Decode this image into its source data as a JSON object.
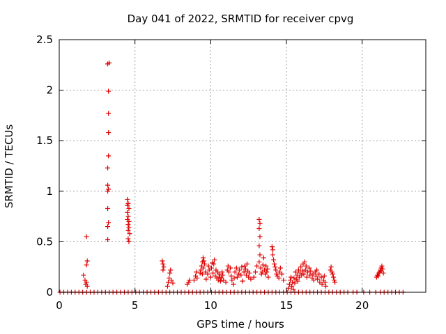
{
  "chart_data": {
    "type": "scatter",
    "title": "Day 041 of 2022, SRMTID for receiver cpvg",
    "xlabel": "GPS time / hours",
    "ylabel": "SRMTID / TECUs",
    "xlim": [
      0,
      24.2
    ],
    "ylim": [
      0,
      2.5
    ],
    "xticks": [
      0,
      5,
      10,
      15,
      20
    ],
    "xtick_labels": [
      "0",
      "5",
      "10",
      "15",
      "20"
    ],
    "yticks": [
      0,
      0.5,
      1,
      1.5,
      2,
      2.5
    ],
    "ytick_labels": [
      "0",
      "0.5",
      "1",
      "1.5",
      "2",
      "2.5"
    ],
    "grid": true,
    "marker": "+",
    "color": "#e00000",
    "series": [
      {
        "name": "SRMTID",
        "points": [
          [
            0.05,
            0
          ],
          [
            0.3,
            0
          ],
          [
            0.55,
            0
          ],
          [
            0.8,
            0
          ],
          [
            1.05,
            0
          ],
          [
            1.3,
            0
          ],
          [
            1.55,
            0
          ],
          [
            1.8,
            0
          ],
          [
            2.05,
            0
          ],
          [
            2.3,
            0
          ],
          [
            2.55,
            0
          ],
          [
            2.8,
            0
          ],
          [
            3.05,
            0
          ],
          [
            3.3,
            0
          ],
          [
            3.55,
            0
          ],
          [
            3.8,
            0
          ],
          [
            4.05,
            0
          ],
          [
            4.3,
            0
          ],
          [
            4.55,
            0
          ],
          [
            4.8,
            0
          ],
          [
            5.05,
            0
          ],
          [
            5.3,
            0
          ],
          [
            5.55,
            0
          ],
          [
            5.8,
            0
          ],
          [
            6.05,
            0
          ],
          [
            6.3,
            0
          ],
          [
            6.55,
            0
          ],
          [
            6.8,
            0
          ],
          [
            7.05,
            0
          ],
          [
            7.3,
            0
          ],
          [
            7.55,
            0
          ],
          [
            7.8,
            0
          ],
          [
            8.05,
            0
          ],
          [
            8.3,
            0
          ],
          [
            8.55,
            0
          ],
          [
            8.8,
            0
          ],
          [
            9.05,
            0
          ],
          [
            9.3,
            0
          ],
          [
            9.55,
            0
          ],
          [
            9.8,
            0
          ],
          [
            10.05,
            0
          ],
          [
            10.3,
            0
          ],
          [
            10.55,
            0
          ],
          [
            10.8,
            0
          ],
          [
            11.05,
            0
          ],
          [
            11.3,
            0
          ],
          [
            11.55,
            0
          ],
          [
            11.8,
            0
          ],
          [
            12.05,
            0
          ],
          [
            12.3,
            0
          ],
          [
            12.55,
            0
          ],
          [
            12.8,
            0
          ],
          [
            13.05,
            0
          ],
          [
            13.3,
            0
          ],
          [
            13.55,
            0
          ],
          [
            13.8,
            0
          ],
          [
            14.05,
            0
          ],
          [
            14.3,
            0
          ],
          [
            14.55,
            0
          ],
          [
            14.8,
            0
          ],
          [
            15.05,
            0
          ],
          [
            15.3,
            0
          ],
          [
            15.55,
            0
          ],
          [
            15.8,
            0
          ],
          [
            16.05,
            0
          ],
          [
            16.3,
            0
          ],
          [
            16.55,
            0
          ],
          [
            16.8,
            0
          ],
          [
            17.05,
            0
          ],
          [
            17.3,
            0
          ],
          [
            17.55,
            0
          ],
          [
            17.8,
            0
          ],
          [
            18.05,
            0
          ],
          [
            18.3,
            0
          ],
          [
            18.55,
            0
          ],
          [
            18.8,
            0
          ],
          [
            19.05,
            0
          ],
          [
            19.4,
            0
          ],
          [
            19.65,
            0
          ],
          [
            20.1,
            0
          ],
          [
            20.5,
            0
          ],
          [
            20.9,
            0
          ],
          [
            21.2,
            0
          ],
          [
            21.45,
            0
          ],
          [
            21.7,
            0
          ],
          [
            21.95,
            0
          ],
          [
            22.2,
            0
          ],
          [
            22.45,
            0
          ],
          [
            22.7,
            0
          ],
          [
            1.6,
            0.17
          ],
          [
            1.7,
            0.12
          ],
          [
            1.75,
            0.08
          ],
          [
            1.8,
            0.1
          ],
          [
            1.85,
            0.06
          ],
          [
            1.8,
            0.27
          ],
          [
            1.85,
            0.31
          ],
          [
            1.8,
            0.55
          ],
          [
            3.2,
            2.26
          ],
          [
            3.3,
            2.27
          ],
          [
            3.25,
            1.99
          ],
          [
            3.25,
            1.77
          ],
          [
            3.25,
            1.58
          ],
          [
            3.25,
            1.35
          ],
          [
            3.2,
            1.23
          ],
          [
            3.2,
            1.06
          ],
          [
            3.25,
            1.02
          ],
          [
            3.2,
            1.0
          ],
          [
            3.2,
            0.83
          ],
          [
            3.25,
            0.69
          ],
          [
            3.2,
            0.65
          ],
          [
            3.2,
            0.52
          ],
          [
            4.5,
            0.92
          ],
          [
            4.55,
            0.88
          ],
          [
            4.5,
            0.86
          ],
          [
            4.6,
            0.83
          ],
          [
            4.5,
            0.79
          ],
          [
            4.55,
            0.75
          ],
          [
            4.5,
            0.72
          ],
          [
            4.6,
            0.7
          ],
          [
            4.55,
            0.67
          ],
          [
            4.6,
            0.64
          ],
          [
            4.55,
            0.61
          ],
          [
            4.65,
            0.58
          ],
          [
            4.55,
            0.53
          ],
          [
            4.6,
            0.5
          ],
          [
            6.8,
            0.31
          ],
          [
            6.85,
            0.28
          ],
          [
            6.9,
            0.25
          ],
          [
            6.85,
            0.22
          ],
          [
            7.15,
            0.06
          ],
          [
            7.2,
            0.1
          ],
          [
            7.3,
            0.19
          ],
          [
            7.35,
            0.22
          ],
          [
            7.25,
            0.14
          ],
          [
            7.4,
            0.12
          ],
          [
            7.5,
            0.09
          ],
          [
            8.45,
            0.08
          ],
          [
            8.55,
            0.1
          ],
          [
            8.6,
            0.12
          ],
          [
            8.9,
            0.12
          ],
          [
            9.0,
            0.16
          ],
          [
            9.05,
            0.2
          ],
          [
            9.1,
            0.14
          ],
          [
            9.3,
            0.19
          ],
          [
            9.35,
            0.22
          ],
          [
            9.4,
            0.26
          ],
          [
            9.45,
            0.3
          ],
          [
            9.5,
            0.34
          ],
          [
            9.55,
            0.31
          ],
          [
            9.6,
            0.28
          ],
          [
            9.5,
            0.24
          ],
          [
            9.45,
            0.18
          ],
          [
            9.65,
            0.2
          ],
          [
            9.7,
            0.13
          ],
          [
            9.8,
            0.18
          ],
          [
            9.85,
            0.26
          ],
          [
            9.9,
            0.22
          ],
          [
            10.0,
            0.15
          ],
          [
            10.05,
            0.24
          ],
          [
            10.1,
            0.29
          ],
          [
            10.15,
            0.19
          ],
          [
            10.2,
            0.28
          ],
          [
            10.25,
            0.32
          ],
          [
            10.3,
            0.16
          ],
          [
            10.35,
            0.22
          ],
          [
            10.4,
            0.14
          ],
          [
            10.45,
            0.2
          ],
          [
            10.5,
            0.12
          ],
          [
            10.55,
            0.18
          ],
          [
            10.6,
            0.15
          ],
          [
            10.65,
            0.11
          ],
          [
            10.7,
            0.14
          ],
          [
            10.75,
            0.2
          ],
          [
            10.8,
            0.17
          ],
          [
            10.85,
            0.12
          ],
          [
            11.0,
            0.1
          ],
          [
            11.1,
            0.22
          ],
          [
            11.15,
            0.26
          ],
          [
            11.2,
            0.2
          ],
          [
            11.3,
            0.24
          ],
          [
            11.35,
            0.16
          ],
          [
            11.4,
            0.12
          ],
          [
            11.5,
            0.08
          ],
          [
            11.55,
            0.14
          ],
          [
            11.6,
            0.2
          ],
          [
            11.7,
            0.24
          ],
          [
            11.75,
            0.15
          ],
          [
            11.85,
            0.18
          ],
          [
            11.9,
            0.22
          ],
          [
            12.0,
            0.17
          ],
          [
            12.05,
            0.25
          ],
          [
            12.1,
            0.11
          ],
          [
            12.2,
            0.2
          ],
          [
            12.25,
            0.26
          ],
          [
            12.3,
            0.23
          ],
          [
            12.35,
            0.17
          ],
          [
            12.4,
            0.28
          ],
          [
            12.45,
            0.21
          ],
          [
            12.5,
            0.15
          ],
          [
            12.55,
            0.19
          ],
          [
            12.65,
            0.13
          ],
          [
            12.85,
            0.15
          ],
          [
            12.95,
            0.2
          ],
          [
            13.05,
            0.26
          ],
          [
            13.2,
            0.72
          ],
          [
            13.25,
            0.68
          ],
          [
            13.2,
            0.63
          ],
          [
            13.25,
            0.55
          ],
          [
            13.2,
            0.46
          ],
          [
            13.25,
            0.37
          ],
          [
            13.2,
            0.3
          ],
          [
            13.3,
            0.24
          ],
          [
            13.35,
            0.18
          ],
          [
            13.4,
            0.2
          ],
          [
            13.45,
            0.27
          ],
          [
            13.5,
            0.34
          ],
          [
            13.55,
            0.22
          ],
          [
            13.6,
            0.18
          ],
          [
            13.65,
            0.26
          ],
          [
            13.7,
            0.2
          ],
          [
            13.75,
            0.23
          ],
          [
            13.8,
            0.15
          ],
          [
            14.05,
            0.45
          ],
          [
            14.1,
            0.42
          ],
          [
            14.1,
            0.37
          ],
          [
            14.15,
            0.32
          ],
          [
            14.2,
            0.28
          ],
          [
            14.25,
            0.25
          ],
          [
            14.3,
            0.22
          ],
          [
            14.35,
            0.18
          ],
          [
            14.4,
            0.16
          ],
          [
            14.5,
            0.14
          ],
          [
            14.55,
            0.2
          ],
          [
            14.6,
            0.24
          ],
          [
            14.7,
            0.18
          ],
          [
            14.8,
            0.12
          ],
          [
            15.15,
            0.04
          ],
          [
            15.2,
            0.08
          ],
          [
            15.25,
            0.12
          ],
          [
            15.3,
            0.15
          ],
          [
            15.35,
            0.06
          ],
          [
            15.4,
            0.1
          ],
          [
            15.45,
            0.03
          ],
          [
            15.5,
            0.14
          ],
          [
            15.55,
            0.09
          ],
          [
            15.6,
            0.2
          ],
          [
            15.65,
            0.13
          ],
          [
            15.7,
            0.17
          ],
          [
            15.75,
            0.11
          ],
          [
            15.8,
            0.22
          ],
          [
            15.85,
            0.15
          ],
          [
            15.9,
            0.19
          ],
          [
            15.95,
            0.25
          ],
          [
            16.0,
            0.17
          ],
          [
            16.05,
            0.21
          ],
          [
            16.1,
            0.28
          ],
          [
            16.15,
            0.18
          ],
          [
            16.2,
            0.3
          ],
          [
            16.25,
            0.22
          ],
          [
            16.3,
            0.26
          ],
          [
            16.35,
            0.15
          ],
          [
            16.4,
            0.2
          ],
          [
            16.5,
            0.24
          ],
          [
            16.55,
            0.17
          ],
          [
            16.6,
            0.21
          ],
          [
            16.7,
            0.14
          ],
          [
            16.75,
            0.18
          ],
          [
            16.8,
            0.12
          ],
          [
            16.9,
            0.2
          ],
          [
            16.95,
            0.16
          ],
          [
            17.0,
            0.22
          ],
          [
            17.05,
            0.13
          ],
          [
            17.15,
            0.18
          ],
          [
            17.2,
            0.1
          ],
          [
            17.3,
            0.15
          ],
          [
            17.35,
            0.08
          ],
          [
            17.45,
            0.12
          ],
          [
            17.5,
            0.16
          ],
          [
            17.55,
            0.1
          ],
          [
            17.6,
            0.06
          ],
          [
            17.9,
            0.22
          ],
          [
            17.95,
            0.25
          ],
          [
            18.0,
            0.2
          ],
          [
            18.05,
            0.18
          ],
          [
            18.1,
            0.15
          ],
          [
            18.15,
            0.12
          ],
          [
            18.2,
            0.1
          ],
          [
            20.95,
            0.15
          ],
          [
            21.0,
            0.17
          ],
          [
            21.05,
            0.16
          ],
          [
            21.1,
            0.19
          ],
          [
            21.15,
            0.2
          ],
          [
            21.2,
            0.22
          ],
          [
            21.25,
            0.24
          ],
          [
            21.3,
            0.26
          ],
          [
            21.25,
            0.21
          ],
          [
            21.35,
            0.23
          ],
          [
            21.4,
            0.19
          ]
        ]
      }
    ]
  }
}
